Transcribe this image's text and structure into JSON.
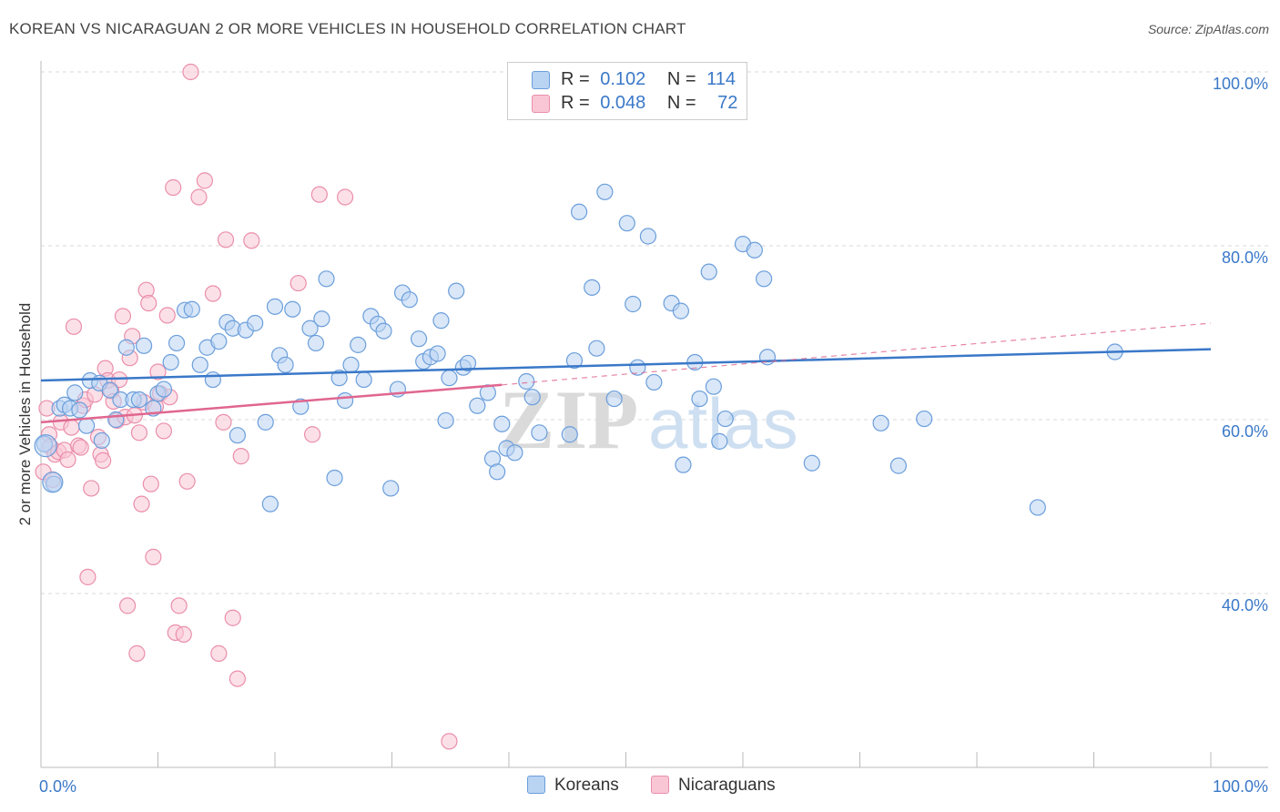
{
  "title": "KOREAN VS NICARAGUAN 2 OR MORE VEHICLES IN HOUSEHOLD CORRELATION CHART",
  "source": "Source: ZipAtlas.com",
  "colors": {
    "blue": "#3a78c8",
    "blue_fill": "#b9d3f3",
    "blue_stroke": "#6b9edb",
    "pink": "#e0668f",
    "pink_fill": "#f9c6d5",
    "pink_stroke": "#ea8eaa"
  },
  "legend": {
    "r_label": "R =",
    "n_label": "N =",
    "koreans": {
      "r": "0.102",
      "n": "114"
    },
    "nicaraguans": {
      "r": "0.048",
      "n": "72"
    }
  },
  "bottom_legend": {
    "koreans": "Koreans",
    "nicaraguans": "Nicaraguans"
  },
  "watermark": {
    "zip": "ZIP",
    "atlas": "atlas"
  },
  "chart_data": {
    "type": "scatter",
    "title": "KOREAN VS NICARAGUAN 2 OR MORE VEHICLES IN HOUSEHOLD CORRELATION CHART",
    "xlabel": "",
    "ylabel": "2 or more Vehicles in Household",
    "xlim": [
      0,
      100
    ],
    "ylim": [
      20,
      100
    ],
    "x_tick_labels": [
      "0.0%",
      "100.0%"
    ],
    "y_ticks": [
      {
        "value": 100,
        "label": "100.0%"
      },
      {
        "value": 80,
        "label": "80.0%"
      },
      {
        "value": 60,
        "label": "60.0%"
      },
      {
        "value": 40,
        "label": "40.0%"
      }
    ],
    "grid": true,
    "series": [
      {
        "name": "Koreans",
        "r": 0.102,
        "n": 114,
        "trend": {
          "x": [
            0,
            100
          ],
          "y": [
            64.5,
            68.1
          ]
        },
        "points": [
          [
            0.3,
            57.2
          ],
          [
            1.1,
            52.6
          ],
          [
            1.6,
            61.3
          ],
          [
            2.0,
            61.7
          ],
          [
            2.5,
            61.3
          ],
          [
            2.9,
            63.1
          ],
          [
            3.3,
            61.1
          ],
          [
            3.9,
            59.3
          ],
          [
            4.2,
            64.5
          ],
          [
            5.0,
            64.2
          ],
          [
            5.2,
            57.6
          ],
          [
            5.9,
            63.4
          ],
          [
            6.4,
            60.0
          ],
          [
            6.8,
            62.3
          ],
          [
            7.3,
            68.3
          ],
          [
            7.9,
            62.3
          ],
          [
            8.4,
            62.3
          ],
          [
            8.8,
            68.5
          ],
          [
            9.6,
            61.3
          ],
          [
            10.0,
            63.0
          ],
          [
            10.5,
            63.5
          ],
          [
            11.1,
            66.6
          ],
          [
            11.6,
            68.8
          ],
          [
            12.3,
            72.6
          ],
          [
            12.9,
            72.7
          ],
          [
            13.6,
            66.3
          ],
          [
            14.2,
            68.3
          ],
          [
            14.7,
            64.6
          ],
          [
            15.2,
            69.0
          ],
          [
            15.9,
            71.2
          ],
          [
            16.4,
            70.5
          ],
          [
            16.8,
            58.2
          ],
          [
            17.5,
            70.3
          ],
          [
            18.3,
            71.1
          ],
          [
            19.2,
            59.7
          ],
          [
            19.6,
            50.3
          ],
          [
            20.0,
            73.0
          ],
          [
            20.4,
            67.4
          ],
          [
            20.9,
            66.3
          ],
          [
            21.5,
            72.7
          ],
          [
            22.2,
            61.5
          ],
          [
            23.0,
            70.5
          ],
          [
            23.5,
            68.8
          ],
          [
            24.0,
            71.6
          ],
          [
            24.4,
            76.2
          ],
          [
            25.1,
            53.3
          ],
          [
            25.5,
            64.8
          ],
          [
            26.0,
            62.2
          ],
          [
            26.5,
            66.3
          ],
          [
            27.1,
            68.6
          ],
          [
            27.6,
            64.6
          ],
          [
            28.2,
            71.9
          ],
          [
            28.8,
            71.0
          ],
          [
            29.3,
            70.2
          ],
          [
            29.9,
            52.1
          ],
          [
            30.5,
            63.5
          ],
          [
            30.9,
            74.6
          ],
          [
            31.5,
            73.8
          ],
          [
            32.3,
            69.3
          ],
          [
            32.7,
            66.7
          ],
          [
            33.3,
            67.2
          ],
          [
            33.9,
            67.6
          ],
          [
            34.2,
            71.4
          ],
          [
            34.6,
            59.9
          ],
          [
            34.9,
            64.8
          ],
          [
            35.5,
            74.8
          ],
          [
            36.1,
            66.0
          ],
          [
            36.5,
            66.5
          ],
          [
            37.3,
            61.6
          ],
          [
            38.2,
            63.1
          ],
          [
            38.6,
            55.5
          ],
          [
            39.0,
            54.0
          ],
          [
            39.4,
            59.5
          ],
          [
            39.8,
            56.7
          ],
          [
            40.5,
            56.2
          ],
          [
            41.5,
            64.4
          ],
          [
            42.0,
            62.6
          ],
          [
            42.6,
            58.5
          ],
          [
            45.2,
            58.3
          ],
          [
            45.6,
            66.8
          ],
          [
            46.0,
            83.9
          ],
          [
            47.1,
            75.2
          ],
          [
            47.5,
            68.2
          ],
          [
            48.2,
            86.2
          ],
          [
            49.0,
            62.4
          ],
          [
            50.1,
            82.6
          ],
          [
            50.6,
            73.3
          ],
          [
            51.0,
            66.0
          ],
          [
            51.9,
            81.1
          ],
          [
            52.4,
            64.3
          ],
          [
            53.9,
            73.4
          ],
          [
            54.7,
            72.5
          ],
          [
            54.9,
            54.8
          ],
          [
            55.9,
            66.6
          ],
          [
            56.3,
            62.4
          ],
          [
            57.1,
            77.0
          ],
          [
            57.5,
            63.8
          ],
          [
            58.0,
            57.5
          ],
          [
            58.5,
            60.1
          ],
          [
            60.0,
            80.2
          ],
          [
            61.0,
            79.5
          ],
          [
            61.8,
            76.2
          ],
          [
            62.1,
            67.2
          ],
          [
            65.9,
            55.0
          ],
          [
            71.8,
            59.6
          ],
          [
            73.3,
            54.7
          ],
          [
            75.5,
            60.1
          ],
          [
            85.2,
            49.9
          ],
          [
            91.8,
            67.8
          ]
        ]
      },
      {
        "name": "Nicaraguans",
        "r": 0.048,
        "n": 72,
        "trend": {
          "x": [
            0,
            39.4
          ],
          "y": [
            59.7,
            64.0
          ]
        },
        "trend_dashed": {
          "x": [
            39.4,
            100
          ],
          "y": [
            64.0,
            71.1
          ]
        },
        "points": [
          [
            0.2,
            54.0
          ],
          [
            0.5,
            61.3
          ],
          [
            0.7,
            58.3
          ],
          [
            0.8,
            56.9
          ],
          [
            1.0,
            53.1
          ],
          [
            1.2,
            56.0
          ],
          [
            1.5,
            56.3
          ],
          [
            1.7,
            59.7
          ],
          [
            2.0,
            56.5
          ],
          [
            2.3,
            55.4
          ],
          [
            2.6,
            59.1
          ],
          [
            2.8,
            70.7
          ],
          [
            3.2,
            57.0
          ],
          [
            3.4,
            56.8
          ],
          [
            3.6,
            61.6
          ],
          [
            3.8,
            62.3
          ],
          [
            4.0,
            41.9
          ],
          [
            4.3,
            52.1
          ],
          [
            4.6,
            62.9
          ],
          [
            4.9,
            58.0
          ],
          [
            5.1,
            56.0
          ],
          [
            5.3,
            55.3
          ],
          [
            5.5,
            65.9
          ],
          [
            5.7,
            64.5
          ],
          [
            6.0,
            63.3
          ],
          [
            6.2,
            62.1
          ],
          [
            6.5,
            59.9
          ],
          [
            6.7,
            64.6
          ],
          [
            7.0,
            71.9
          ],
          [
            7.2,
            60.3
          ],
          [
            7.4,
            38.6
          ],
          [
            7.6,
            67.1
          ],
          [
            7.8,
            69.6
          ],
          [
            8.0,
            60.5
          ],
          [
            8.2,
            33.1
          ],
          [
            8.4,
            58.5
          ],
          [
            8.6,
            50.3
          ],
          [
            8.8,
            62.0
          ],
          [
            9.0,
            74.9
          ],
          [
            9.2,
            73.4
          ],
          [
            9.4,
            52.6
          ],
          [
            9.6,
            44.2
          ],
          [
            9.8,
            61.5
          ],
          [
            10.0,
            65.5
          ],
          [
            10.2,
            63.0
          ],
          [
            10.5,
            58.7
          ],
          [
            10.8,
            72.0
          ],
          [
            11.0,
            62.6
          ],
          [
            11.3,
            86.7
          ],
          [
            11.5,
            35.5
          ],
          [
            11.8,
            38.6
          ],
          [
            12.2,
            35.3
          ],
          [
            12.5,
            52.9
          ],
          [
            12.8,
            100.0
          ],
          [
            13.5,
            85.6
          ],
          [
            14.0,
            87.5
          ],
          [
            14.7,
            74.5
          ],
          [
            15.2,
            33.1
          ],
          [
            15.6,
            59.7
          ],
          [
            15.8,
            80.7
          ],
          [
            16.4,
            37.2
          ],
          [
            16.8,
            30.2
          ],
          [
            17.1,
            55.8
          ],
          [
            18.0,
            80.6
          ],
          [
            22.0,
            75.7
          ],
          [
            23.2,
            58.3
          ],
          [
            23.8,
            85.9
          ],
          [
            26.0,
            85.6
          ],
          [
            34.9,
            23.0
          ]
        ]
      }
    ]
  }
}
